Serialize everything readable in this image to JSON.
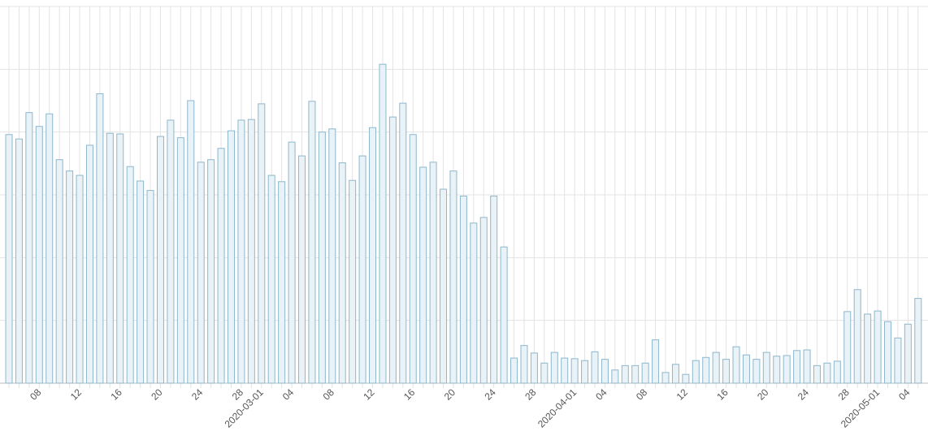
{
  "chart_data": {
    "type": "bar",
    "categories": [
      null,
      null,
      null,
      "08",
      null,
      null,
      null,
      "12",
      null,
      null,
      null,
      "16",
      null,
      null,
      null,
      "20",
      null,
      null,
      null,
      "24",
      null,
      null,
      null,
      "28",
      null,
      "2020-03-01",
      null,
      null,
      "04",
      null,
      null,
      null,
      "08",
      null,
      null,
      null,
      "12",
      null,
      null,
      null,
      "16",
      null,
      null,
      null,
      "20",
      null,
      null,
      null,
      "24",
      null,
      null,
      null,
      "28",
      null,
      null,
      null,
      "2020-04-01",
      null,
      null,
      "04",
      null,
      null,
      null,
      "08",
      null,
      null,
      null,
      "12",
      null,
      null,
      null,
      "16",
      null,
      null,
      null,
      "20",
      null,
      null,
      null,
      "24",
      null,
      null,
      null,
      "28",
      null,
      null,
      "2020-05-01",
      null,
      null,
      "04",
      null
    ],
    "values": [
      3.96,
      3.89,
      4.31,
      4.09,
      4.29,
      3.56,
      3.38,
      3.31,
      3.79,
      4.61,
      3.98,
      3.97,
      3.45,
      3.22,
      3.07,
      3.93,
      4.19,
      3.91,
      4.5,
      3.52,
      3.56,
      3.74,
      4.02,
      4.19,
      4.2,
      4.45,
      3.31,
      3.21,
      3.84,
      3.62,
      4.49,
      4.0,
      4.05,
      3.51,
      3.23,
      3.62,
      4.07,
      5.08,
      4.24,
      4.46,
      3.96,
      3.44,
      3.52,
      3.09,
      3.38,
      2.98,
      2.55,
      2.64,
      2.98,
      2.17,
      0.4,
      0.6,
      0.48,
      0.32,
      0.49,
      0.4,
      0.39,
      0.36,
      0.5,
      0.38,
      0.21,
      0.28,
      0.28,
      0.32,
      0.69,
      0.17,
      0.3,
      0.14,
      0.36,
      0.41,
      0.49,
      0.38,
      0.58,
      0.45,
      0.38,
      0.49,
      0.43,
      0.44,
      0.52,
      0.53,
      0.28,
      0.32,
      0.35,
      1.14,
      1.49,
      1.1,
      1.15,
      0.98,
      0.72,
      0.94,
      1.35
    ],
    "color": "#e9f2f7",
    "edge_color": "#8db7cc",
    "ylim": [
      0,
      6
    ],
    "yticks": [
      0,
      1,
      2,
      3,
      4,
      5,
      6
    ],
    "ytick_labels": false,
    "grid": true
  }
}
